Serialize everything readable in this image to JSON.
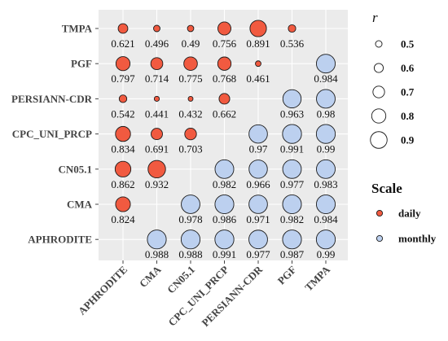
{
  "chart_data": {
    "type": "scatter",
    "subtype": "correlation-bubble-matrix",
    "x_categories": [
      "APHRODITE",
      "CMA",
      "CN05.1",
      "CPC_UNI_PRCP",
      "PERSIANN-CDR",
      "PGF",
      "TMPA"
    ],
    "y_categories": [
      "APHRODITE",
      "CMA",
      "CN05.1",
      "CPC_UNI_PRCP",
      "PERSIANN-CDR",
      "PGF",
      "TMPA"
    ],
    "grid": true,
    "panel_background": "#ebebeb",
    "legend_position": "right",
    "size_legend": {
      "title": "r",
      "values": [
        0.5,
        0.6,
        0.7,
        0.8,
        0.9
      ],
      "labels": [
        "0.5",
        "0.6",
        "0.7",
        "0.8",
        "0.9"
      ]
    },
    "color_legend": {
      "title": "Scale",
      "entries": [
        {
          "label": "daily",
          "color": "#f15a40"
        },
        {
          "label": "monthly",
          "color": "#bcd0ef"
        }
      ]
    },
    "points": [
      {
        "x": "APHRODITE",
        "y": "TMPA",
        "r": 0.621,
        "label": "0.621",
        "scale": "daily"
      },
      {
        "x": "CMA",
        "y": "TMPA",
        "r": 0.496,
        "label": "0.496",
        "scale": "daily"
      },
      {
        "x": "CN05.1",
        "y": "TMPA",
        "r": 0.49,
        "label": "0.49",
        "scale": "daily"
      },
      {
        "x": "CPC_UNI_PRCP",
        "y": "TMPA",
        "r": 0.756,
        "label": "0.756",
        "scale": "daily"
      },
      {
        "x": "PERSIANN-CDR",
        "y": "TMPA",
        "r": 0.891,
        "label": "0.891",
        "scale": "daily"
      },
      {
        "x": "PGF",
        "y": "TMPA",
        "r": 0.536,
        "label": "0.536",
        "scale": "daily"
      },
      {
        "x": "APHRODITE",
        "y": "PGF",
        "r": 0.797,
        "label": "0.797",
        "scale": "daily"
      },
      {
        "x": "CMA",
        "y": "PGF",
        "r": 0.714,
        "label": "0.714",
        "scale": "daily"
      },
      {
        "x": "CN05.1",
        "y": "PGF",
        "r": 0.775,
        "label": "0.775",
        "scale": "daily"
      },
      {
        "x": "CPC_UNI_PRCP",
        "y": "PGF",
        "r": 0.768,
        "label": "0.768",
        "scale": "daily"
      },
      {
        "x": "PERSIANN-CDR",
        "y": "PGF",
        "r": 0.461,
        "label": "0.461",
        "scale": "daily"
      },
      {
        "x": "TMPA",
        "y": "PGF",
        "r": 0.984,
        "label": "0.984",
        "scale": "monthly"
      },
      {
        "x": "APHRODITE",
        "y": "PERSIANN-CDR",
        "r": 0.542,
        "label": "0.542",
        "scale": "daily"
      },
      {
        "x": "CMA",
        "y": "PERSIANN-CDR",
        "r": 0.441,
        "label": "0.441",
        "scale": "daily"
      },
      {
        "x": "CN05.1",
        "y": "PERSIANN-CDR",
        "r": 0.432,
        "label": "0.432",
        "scale": "daily"
      },
      {
        "x": "CPC_UNI_PRCP",
        "y": "PERSIANN-CDR",
        "r": 0.662,
        "label": "0.662",
        "scale": "daily"
      },
      {
        "x": "PGF",
        "y": "PERSIANN-CDR",
        "r": 0.963,
        "label": "0.963",
        "scale": "monthly"
      },
      {
        "x": "TMPA",
        "y": "PERSIANN-CDR",
        "r": 0.98,
        "label": "0.98",
        "scale": "monthly"
      },
      {
        "x": "APHRODITE",
        "y": "CPC_UNI_PRCP",
        "r": 0.834,
        "label": "0.834",
        "scale": "daily"
      },
      {
        "x": "CMA",
        "y": "CPC_UNI_PRCP",
        "r": 0.691,
        "label": "0.691",
        "scale": "daily"
      },
      {
        "x": "CN05.1",
        "y": "CPC_UNI_PRCP",
        "r": 0.703,
        "label": "0.703",
        "scale": "daily"
      },
      {
        "x": "PERSIANN-CDR",
        "y": "CPC_UNI_PRCP",
        "r": 0.97,
        "label": "0.97",
        "scale": "monthly"
      },
      {
        "x": "PGF",
        "y": "CPC_UNI_PRCP",
        "r": 0.991,
        "label": "0.991",
        "scale": "monthly"
      },
      {
        "x": "TMPA",
        "y": "CPC_UNI_PRCP",
        "r": 0.99,
        "label": "0.99",
        "scale": "monthly"
      },
      {
        "x": "APHRODITE",
        "y": "CN05.1",
        "r": 0.862,
        "label": "0.862",
        "scale": "daily"
      },
      {
        "x": "CMA",
        "y": "CN05.1",
        "r": 0.932,
        "label": "0.932",
        "scale": "daily"
      },
      {
        "x": "CPC_UNI_PRCP",
        "y": "CN05.1",
        "r": 0.982,
        "label": "0.982",
        "scale": "monthly"
      },
      {
        "x": "PERSIANN-CDR",
        "y": "CN05.1",
        "r": 0.966,
        "label": "0.966",
        "scale": "monthly"
      },
      {
        "x": "PGF",
        "y": "CN05.1",
        "r": 0.977,
        "label": "0.977",
        "scale": "monthly"
      },
      {
        "x": "TMPA",
        "y": "CN05.1",
        "r": 0.983,
        "label": "0.983",
        "scale": "monthly"
      },
      {
        "x": "APHRODITE",
        "y": "CMA",
        "r": 0.824,
        "label": "0.824",
        "scale": "daily"
      },
      {
        "x": "CN05.1",
        "y": "CMA",
        "r": 0.978,
        "label": "0.978",
        "scale": "monthly"
      },
      {
        "x": "CPC_UNI_PRCP",
        "y": "CMA",
        "r": 0.986,
        "label": "0.986",
        "scale": "monthly"
      },
      {
        "x": "PERSIANN-CDR",
        "y": "CMA",
        "r": 0.971,
        "label": "0.971",
        "scale": "monthly"
      },
      {
        "x": "PGF",
        "y": "CMA",
        "r": 0.982,
        "label": "0.982",
        "scale": "monthly"
      },
      {
        "x": "TMPA",
        "y": "CMA",
        "r": 0.984,
        "label": "0.984",
        "scale": "monthly"
      },
      {
        "x": "CMA",
        "y": "APHRODITE",
        "r": 0.988,
        "label": "0.988",
        "scale": "monthly"
      },
      {
        "x": "CN05.1",
        "y": "APHRODITE",
        "r": 0.988,
        "label": "0.988",
        "scale": "monthly"
      },
      {
        "x": "CPC_UNI_PRCP",
        "y": "APHRODITE",
        "r": 0.991,
        "label": "0.991",
        "scale": "monthly"
      },
      {
        "x": "PERSIANN-CDR",
        "y": "APHRODITE",
        "r": 0.977,
        "label": "0.977",
        "scale": "monthly"
      },
      {
        "x": "PGF",
        "y": "APHRODITE",
        "r": 0.987,
        "label": "0.987",
        "scale": "monthly"
      },
      {
        "x": "TMPA",
        "y": "APHRODITE",
        "r": 0.99,
        "label": "0.99",
        "scale": "monthly"
      }
    ]
  }
}
